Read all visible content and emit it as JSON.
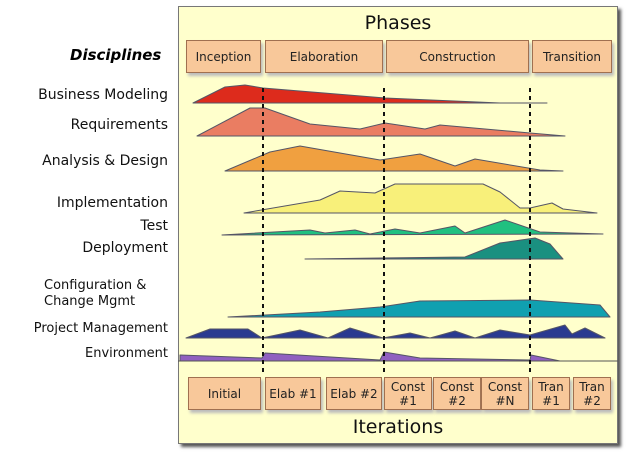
{
  "phases_title": "Phases",
  "iterations_title": "Iterations",
  "disciplines_title": "Disciplines",
  "phases": [
    "Inception",
    "Elaboration",
    "Construction",
    "Transition"
  ],
  "iterations": [
    "Initial",
    "Elab #1",
    "Elab #2",
    "Const #1",
    "Const #2",
    "Const #N",
    "Tran #1",
    "Tran #2"
  ],
  "disciplines": [
    {
      "label": "Business Modeling",
      "color": "#dd2b1c"
    },
    {
      "label": "Requirements",
      "color": "#ea7d62"
    },
    {
      "label": "Analysis & Design",
      "color": "#f0a040"
    },
    {
      "label": "Implementation",
      "color": "#f8f07a"
    },
    {
      "label": "Test",
      "color": "#20c080"
    },
    {
      "label": "Deployment",
      "color": "#1a9080"
    },
    {
      "label": "Configuration & Change Mgmt",
      "color": "#10a0b0"
    },
    {
      "label": "Project Management",
      "color": "#2a3a90"
    },
    {
      "label": "Environment",
      "color": "#9060c0"
    }
  ]
}
